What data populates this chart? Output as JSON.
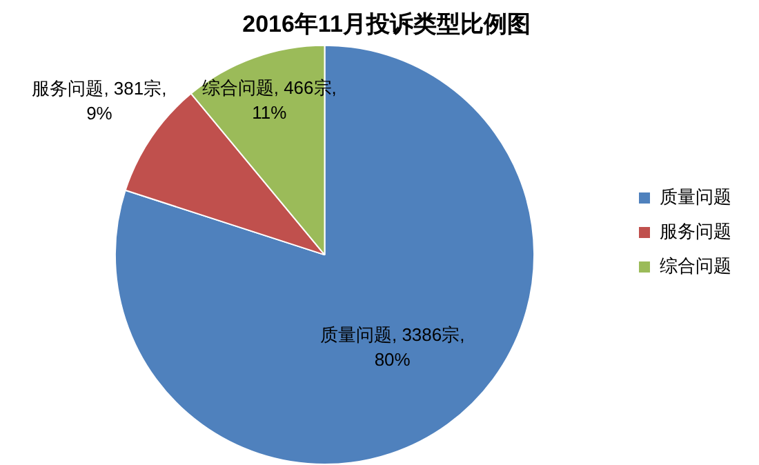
{
  "chart_data": {
    "type": "pie",
    "title": "2016年11月投诉类型比例图",
    "categories": [
      "质量问题",
      "服务问题",
      "综合问题"
    ],
    "values": [
      3386,
      381,
      466
    ],
    "colors": [
      "#4f81bd",
      "#c0504d",
      "#9bbb59"
    ],
    "value_labels": [
      "质量问题, 3386宗, 80%",
      "服务问题, 381宗, 9%",
      "综合问题, 466宗, 11%"
    ],
    "legend": "right"
  }
}
